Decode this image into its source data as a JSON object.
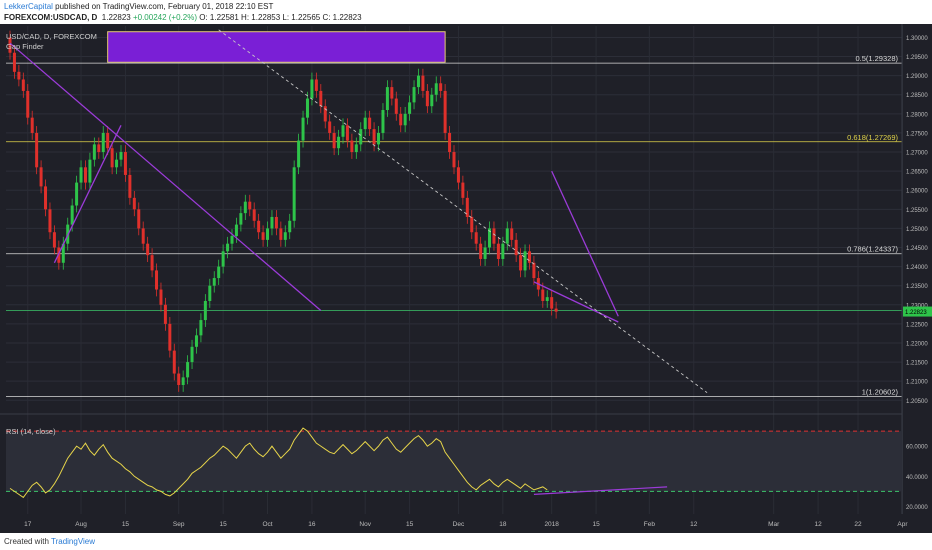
{
  "header": {
    "author": "LekkerCapital",
    "published": "published on TradingView.com, February 01, 2018 22:10 EST",
    "symbol": "FOREXCOM:USDCAD, D",
    "last": "1.22823",
    "change": "+0.00242 (+0.2%)",
    "ohlc": "O: 1.22581 H: 1.22853 L: 1.22565 C: 1.22823"
  },
  "footer": {
    "created": "Created with",
    "brand": "TradingView"
  },
  "chart_data": [
    {
      "type": "candlestick",
      "title": "USD/CAD, D, FOREXCOM",
      "indicator_label": "Gap Finder",
      "ylim": [
        1.2035,
        1.303
      ],
      "price_ticks": [
        "1.30000",
        "1.29500",
        "1.29000",
        "1.28500",
        "1.28000",
        "1.27500",
        "1.27000",
        "1.26500",
        "1.26000",
        "1.25500",
        "1.25000",
        "1.24500",
        "1.24000",
        "1.23500",
        "1.23000",
        "1.22500",
        "1.22000",
        "1.21500",
        "1.21000",
        "1.20500"
      ],
      "current_price": "1.22823",
      "fib_levels": [
        {
          "label": "0.5(1.29328)",
          "value": 1.29328,
          "color": "#d9d9d9"
        },
        {
          "label": "0.618(1.27269)",
          "value": 1.27269,
          "color": "#e0d34a"
        },
        {
          "label": "0.786(1.24337)",
          "value": 1.24337,
          "color": "#d9d9d9"
        },
        {
          "label": "1(1.20602)",
          "value": 1.20602,
          "color": "#d9d9d9"
        }
      ],
      "support_line": 1.2285,
      "gap_zone": {
        "from": 1.2935,
        "to": 1.3015,
        "color": "#7a1fd6"
      },
      "time_labels": [
        {
          "label": "17",
          "i": 4
        },
        {
          "label": "Aug",
          "i": 16
        },
        {
          "label": "15",
          "i": 26
        },
        {
          "label": "Sep",
          "i": 38
        },
        {
          "label": "15",
          "i": 48
        },
        {
          "label": "Oct",
          "i": 58
        },
        {
          "label": "16",
          "i": 68
        },
        {
          "label": "Nov",
          "i": 80
        },
        {
          "label": "15",
          "i": 90
        },
        {
          "label": "Dec",
          "i": 101
        },
        {
          "label": "18",
          "i": 111
        },
        {
          "label": "2018",
          "i": 122
        },
        {
          "label": "15",
          "i": 132
        },
        {
          "label": "Feb",
          "i": 144
        },
        {
          "label": "12",
          "i": 154
        },
        {
          "label": "Mar",
          "i": 172
        },
        {
          "label": "12",
          "i": 182
        },
        {
          "label": "22",
          "i": 191
        },
        {
          "label": "Apr",
          "i": 201
        }
      ],
      "candle_close": [
        1.296,
        1.291,
        1.289,
        1.286,
        1.279,
        1.275,
        1.266,
        1.261,
        1.255,
        1.249,
        1.245,
        1.241,
        1.246,
        1.251,
        1.256,
        1.262,
        1.266,
        1.262,
        1.268,
        1.272,
        1.27,
        1.275,
        1.271,
        1.266,
        1.268,
        1.27,
        1.264,
        1.258,
        1.255,
        1.25,
        1.246,
        1.243,
        1.239,
        1.234,
        1.23,
        1.225,
        1.218,
        1.212,
        1.209,
        1.211,
        1.215,
        1.219,
        1.222,
        1.226,
        1.231,
        1.235,
        1.237,
        1.24,
        1.244,
        1.246,
        1.248,
        1.251,
        1.254,
        1.257,
        1.255,
        1.252,
        1.249,
        1.247,
        1.25,
        1.253,
        1.25,
        1.247,
        1.249,
        1.252,
        1.266,
        1.273,
        1.279,
        1.284,
        1.289,
        1.286,
        1.282,
        1.278,
        1.275,
        1.271,
        1.274,
        1.277,
        1.273,
        1.27,
        1.272,
        1.276,
        1.279,
        1.276,
        1.272,
        1.275,
        1.281,
        1.287,
        1.284,
        1.28,
        1.277,
        1.28,
        1.283,
        1.287,
        1.29,
        1.286,
        1.282,
        1.285,
        1.288,
        1.286,
        1.275,
        1.27,
        1.266,
        1.262,
        1.258,
        1.253,
        1.249,
        1.246,
        1.242,
        1.245,
        1.25,
        1.246,
        1.242,
        1.246,
        1.25,
        1.247,
        1.243,
        1.239,
        1.244,
        1.241,
        1.237,
        1.234,
        1.231,
        1.232,
        1.229,
        1.2282
      ],
      "trendlines": [
        {
          "from": [
            0,
            1.2985
          ],
          "to": [
            70,
            1.2285
          ],
          "color": "#9b3bd8"
        },
        {
          "from": [
            10,
            1.241
          ],
          "to": [
            25,
            1.277
          ],
          "color": "#9b3bd8"
        },
        {
          "from": [
            122,
            1.265
          ],
          "to": [
            137,
            1.227
          ],
          "color": "#9b3bd8"
        },
        {
          "from": [
            118,
            1.236
          ],
          "to": [
            137,
            1.2255
          ],
          "color": "#9b3bd8"
        }
      ],
      "projection_line": {
        "from": [
          47,
          1.302
        ],
        "to": [
          157,
          1.207
        ],
        "color": "#c8c8c8"
      }
    },
    {
      "type": "line",
      "title": "RSI (14, close)",
      "ylim": [
        15,
        78
      ],
      "ticks": [
        "60.0000",
        "40.0000",
        "20.0000"
      ],
      "overbought": 70,
      "oversold": 30,
      "series": [
        {
          "name": "RSI",
          "color": "#e6d44a",
          "values": [
            32,
            30,
            28,
            26,
            30,
            34,
            36,
            33,
            29,
            31,
            35,
            40,
            46,
            52,
            56,
            60,
            58,
            62,
            57,
            54,
            58,
            61,
            56,
            52,
            50,
            48,
            45,
            43,
            40,
            38,
            36,
            34,
            33,
            31,
            30,
            28,
            27,
            29,
            32,
            35,
            38,
            42,
            44,
            46,
            49,
            52,
            54,
            57,
            60,
            58,
            55,
            52,
            56,
            60,
            62,
            58,
            55,
            53,
            56,
            60,
            56,
            52,
            55,
            58,
            64,
            68,
            72,
            70,
            66,
            62,
            60,
            58,
            56,
            55,
            58,
            61,
            58,
            55,
            57,
            60,
            63,
            60,
            57,
            60,
            64,
            66,
            62,
            58,
            56,
            59,
            62,
            65,
            67,
            64,
            60,
            62,
            65,
            63,
            56,
            52,
            48,
            44,
            40,
            36,
            33,
            31,
            34,
            36,
            38,
            35,
            33,
            36,
            38,
            36,
            34,
            32,
            35,
            33,
            31,
            32,
            33,
            31
          ]
        }
      ]
    }
  ]
}
